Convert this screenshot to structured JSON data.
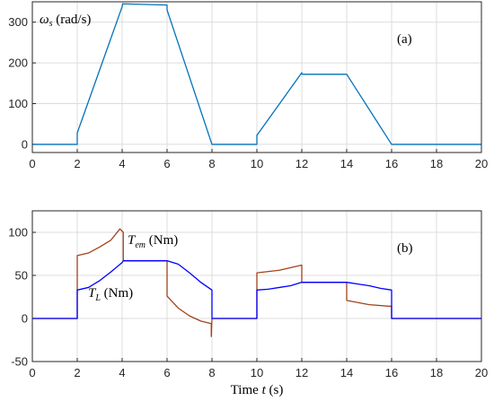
{
  "chart_data": [
    {
      "type": "line",
      "panel_label": "(a)",
      "ylabel_var": "ω",
      "ylabel_sub": "s",
      "ylabel_unit": " (rad/s)",
      "xlim": [
        0,
        20
      ],
      "ylim": [
        -20,
        350
      ],
      "xticks": [
        "0",
        "2",
        "4",
        "6",
        "8",
        "10",
        "12",
        "14",
        "16",
        "18",
        "20"
      ],
      "yticks": [
        "0",
        "100",
        "200",
        "300"
      ],
      "grid": true,
      "series": [
        {
          "color": "#0072BD",
          "x": [
            0,
            2,
            2,
            4,
            4.02,
            6,
            6,
            8,
            10,
            10,
            12,
            12.02,
            14,
            16,
            20
          ],
          "y": [
            0,
            0,
            28,
            338,
            345,
            342,
            330,
            0,
            0,
            22,
            176,
            172,
            172,
            0,
            0
          ]
        }
      ]
    },
    {
      "type": "line",
      "panel_label": "(b)",
      "xlabel_prefix": "Time ",
      "xlabel_var": "t",
      "xlabel_unit": " (s)",
      "xlim": [
        0,
        20
      ],
      "ylim": [
        -50,
        125
      ],
      "xticks": [
        "0",
        "2",
        "4",
        "6",
        "8",
        "10",
        "12",
        "14",
        "16",
        "18",
        "20"
      ],
      "yticks": [
        "-50",
        "0",
        "50",
        "100"
      ],
      "grid": true,
      "series_labels": [
        {
          "var": "T",
          "sub": "em",
          "unit": " (Nm)"
        },
        {
          "var": "T",
          "sub": "L",
          "unit": " (Nm)"
        }
      ],
      "series": [
        {
          "color": "#A2421A",
          "x": [
            0,
            2,
            2,
            2.5,
            3,
            3.5,
            3.9,
            4.05,
            4.05,
            6,
            6,
            6.5,
            7,
            7.5,
            7.97,
            7.97,
            8,
            10,
            10,
            11,
            12,
            12,
            14,
            14,
            15,
            16,
            16,
            20
          ],
          "y": [
            0,
            0,
            73,
            76,
            83,
            91,
            104,
            100,
            67,
            67,
            26,
            12,
            3,
            -3,
            -6,
            -21,
            0,
            0,
            53,
            56,
            62,
            42,
            42,
            21,
            16,
            14,
            0,
            0
          ]
        },
        {
          "color": "#0000FF",
          "x": [
            0,
            2,
            2,
            2.5,
            3,
            3.5,
            4,
            4.05,
            6,
            6.5,
            7,
            7.5,
            8,
            8,
            10,
            10,
            10.5,
            11,
            11.5,
            12,
            14,
            14.5,
            15,
            15.5,
            16,
            16,
            20
          ],
          "y": [
            0,
            0,
            33,
            36,
            44,
            54,
            65,
            67,
            67,
            63,
            53,
            42,
            33,
            0,
            0,
            33,
            34,
            36,
            38,
            42,
            42,
            40,
            38,
            35,
            33,
            0,
            0
          ]
        }
      ]
    }
  ]
}
